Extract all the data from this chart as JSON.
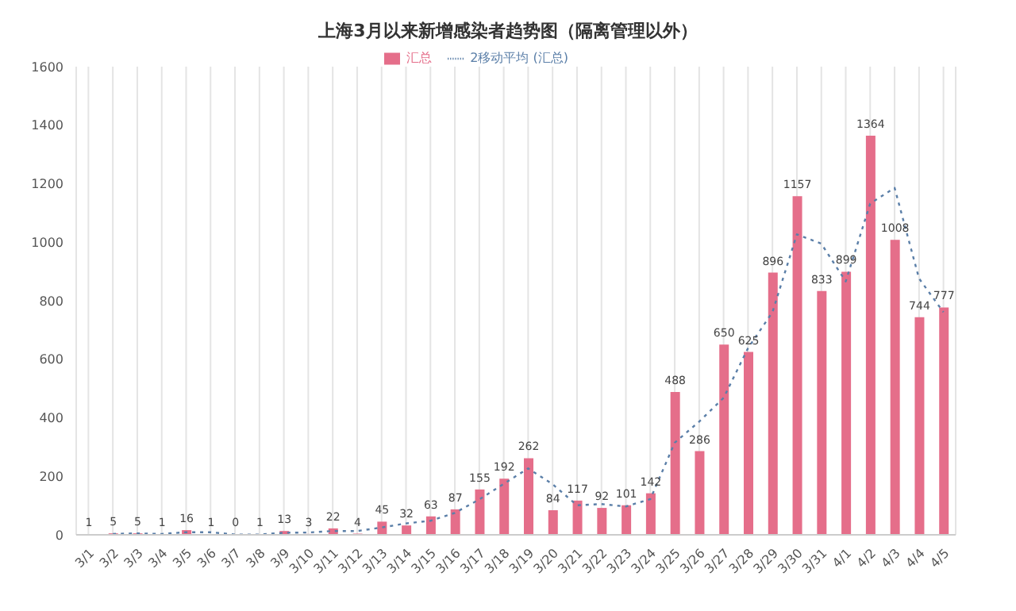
{
  "chart_data": {
    "type": "bar",
    "title": "上海3月以来新增感染者趋势图（隔离管理以外）",
    "categories": [
      "3/1",
      "3/2",
      "3/3",
      "3/4",
      "3/5",
      "3/6",
      "3/7",
      "3/8",
      "3/9",
      "3/10",
      "3/11",
      "3/12",
      "3/13",
      "3/14",
      "3/15",
      "3/16",
      "3/17",
      "3/18",
      "3/19",
      "3/20",
      "3/21",
      "3/22",
      "3/23",
      "3/24",
      "3/25",
      "3/26",
      "3/27",
      "3/28",
      "3/29",
      "3/30",
      "3/31",
      "4/1",
      "4/2",
      "4/3",
      "4/4",
      "4/5"
    ],
    "series": [
      {
        "name": "汇总",
        "color": "#e56e8a",
        "values": [
          1,
          5,
          5,
          1,
          16,
          1,
          0,
          1,
          13,
          3,
          22,
          4,
          45,
          32,
          63,
          87,
          155,
          192,
          262,
          84,
          117,
          92,
          101,
          142,
          488,
          286,
          650,
          625,
          896,
          1157,
          833,
          899,
          1364,
          1008,
          744,
          777
        ],
        "value_labels": [
          "1",
          "5",
          "5",
          "1",
          "16",
          "1",
          "0",
          "1",
          "13",
          "3",
          "22",
          "4",
          "45",
          "32",
          "63",
          "87",
          "155",
          "192",
          "262",
          "84",
          "117",
          "92",
          "101",
          "142",
          "488",
          "286",
          "650",
          "625",
          "896",
          "1157",
          "833",
          "899",
          "1364",
          "1008",
          "744",
          "777"
        ]
      },
      {
        "name": "2移动平均 (汇总)",
        "type": "line",
        "color": "#5b7fa8",
        "line_style": "dotted",
        "marker": "none",
        "values": [
          null,
          3,
          5,
          3,
          9,
          9,
          1,
          1,
          7,
          8,
          13,
          13,
          25,
          39,
          48,
          75,
          121,
          174,
          227,
          173,
          101,
          105,
          97,
          122,
          315,
          387,
          468,
          638,
          761,
          1027,
          995,
          866,
          1132,
          1186,
          876,
          761
        ]
      }
    ],
    "ylim": [
      0,
      1600
    ],
    "yticks": [
      0,
      200,
      400,
      600,
      800,
      1000,
      1200,
      1400,
      1600
    ],
    "grid": "x",
    "legend": "top"
  }
}
